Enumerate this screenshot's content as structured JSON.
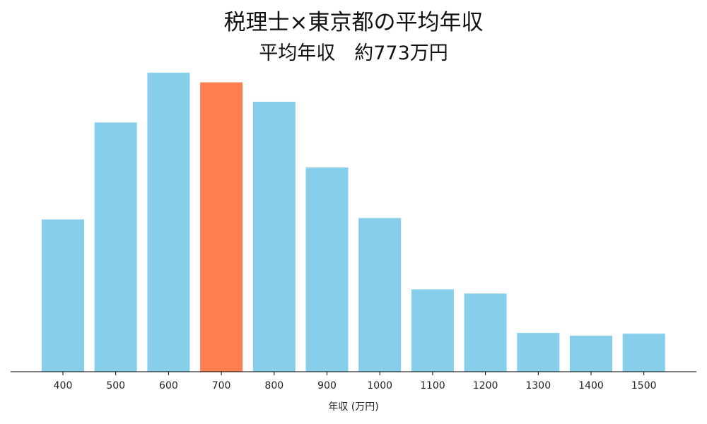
{
  "chart_data": {
    "type": "bar",
    "title": "税理士×東京都の平均年収",
    "subtitle": "平均年収　約773万円",
    "xlabel": "年収 (万円)",
    "ylabel": "",
    "categories": [
      "400",
      "500",
      "600",
      "700",
      "800",
      "900",
      "1000",
      "1100",
      "1200",
      "1300",
      "1400",
      "1500"
    ],
    "values": [
      220,
      360,
      432,
      418,
      390,
      295,
      222,
      119,
      113,
      56,
      52,
      55
    ],
    "ylim": [
      0,
      440
    ],
    "highlight_index": 3,
    "grid": false,
    "colors": {
      "bar": "#87CEEB",
      "highlight": "#FF7F50",
      "axis": "#000000"
    }
  }
}
